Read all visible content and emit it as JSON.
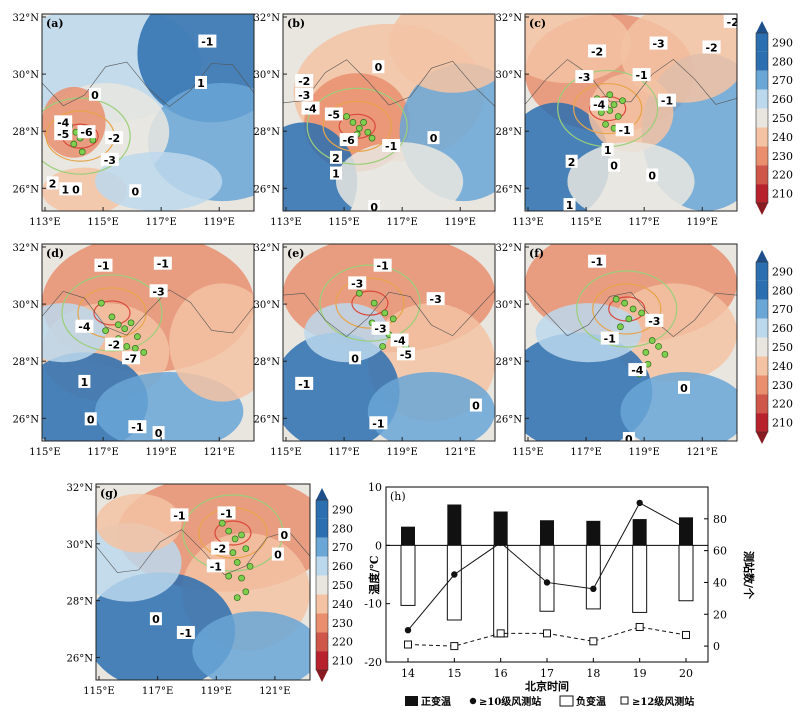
{
  "palette": {
    "cold_dark": "#2c6fb0",
    "cold": "#6aa6d6",
    "cold_light": "#bcd8ec",
    "neutral": "#e9e6e0",
    "warm_light": "#f3c3a3",
    "warm": "#e98f6e",
    "warm_dark": "#cf5749",
    "hot": "#b8222c",
    "contour_warm": "#d94a3c",
    "contour_mid": "#e8a44a",
    "contour_green": "#9bcf7a",
    "station_fill": "#7fcf4f"
  },
  "colorbar_ticks": [
    "290",
    "280",
    "270",
    "260",
    "250",
    "240",
    "230",
    "220",
    "210"
  ],
  "panels": [
    {
      "letter": "(a)",
      "lat_labels": [
        "32°N",
        "30°N",
        "28°N",
        "26°N"
      ],
      "lon_labels": [
        "113°E",
        "115°E",
        "117°E",
        "119°E"
      ],
      "contour_labels": [
        "-1",
        "1",
        "0",
        "-4",
        "-5",
        "-6",
        "-2",
        "-3",
        "2",
        "1",
        "0",
        "0"
      ]
    },
    {
      "letter": "(b)",
      "lat_labels": [
        "32°N",
        "30°N",
        "28°N",
        "26°N"
      ],
      "lon_labels": [
        "113°E",
        "115°E",
        "117°E",
        "119°E"
      ],
      "contour_labels": [
        "0",
        "-2",
        "-3",
        "-4",
        "-5",
        "-6",
        "2",
        "1",
        "-1",
        "0",
        "0"
      ]
    },
    {
      "letter": "(c)",
      "lat_labels": [
        "32°N",
        "30°N",
        "28°N",
        "26°N"
      ],
      "lon_labels": [
        "113°E",
        "115°E",
        "117°E",
        "119°E"
      ],
      "contour_labels": [
        "-2",
        "-2",
        "-3",
        "-2",
        "-3",
        "-1",
        "-4",
        "-1",
        "-1",
        "2",
        "1",
        "0",
        "0",
        "1"
      ]
    },
    {
      "letter": "(d)",
      "lat_labels": [
        "32°N",
        "30°N",
        "28°N",
        "26°N"
      ],
      "lon_labels": [
        "115°E",
        "117°E",
        "119°E",
        "121°E"
      ],
      "contour_labels": [
        "-1",
        "-1",
        "-3",
        "-4",
        "-2",
        "-7",
        "1",
        "0",
        "-1",
        "0"
      ]
    },
    {
      "letter": "(e)",
      "lat_labels": [
        "32°N",
        "30°N",
        "28°N",
        "26°N"
      ],
      "lon_labels": [
        "115°E",
        "117°E",
        "119°E",
        "121°E"
      ],
      "contour_labels": [
        "-1",
        "-3",
        "-3",
        "-3",
        "-4",
        "-5",
        "0",
        "-1",
        "-1",
        "0"
      ]
    },
    {
      "letter": "(f)",
      "lat_labels": [
        "32°N",
        "30°N",
        "28°N",
        "26°N"
      ],
      "lon_labels": [
        "115°E",
        "117°E",
        "119°E",
        "121°E"
      ],
      "contour_labels": [
        "-1",
        "-3",
        "-1",
        "-4",
        "0",
        "0"
      ]
    },
    {
      "letter": "(g)",
      "lat_labels": [
        "32°N",
        "30°N",
        "28°N",
        "26°N"
      ],
      "lon_labels": [
        "115°E",
        "117°E",
        "119°E",
        "121°E"
      ],
      "contour_labels": [
        "-1",
        "-1",
        "-2",
        "0",
        "-1",
        "0",
        "-1",
        "0"
      ]
    }
  ],
  "chart_data": {
    "type": "bar+line",
    "panel": "(h)",
    "xlabel": "北京时间",
    "ylabel_left": "温度/℃",
    "ylabel_right": "测站数/个",
    "x_ticks": [
      "14",
      "15",
      "16",
      "17",
      "18",
      "19",
      "20"
    ],
    "y_left_ticks": [
      "10",
      "0",
      "-10",
      "-20"
    ],
    "y_right_ticks": [
      "80",
      "60",
      "40",
      "20",
      "0"
    ],
    "ylim_left": [
      -20,
      10
    ],
    "ylim_right": [
      -10,
      100
    ],
    "x": [
      14,
      15,
      16,
      17,
      18,
      19,
      20
    ],
    "series": [
      {
        "name": "正变温",
        "kind": "bar",
        "axis": "left",
        "values": [
          3.2,
          7.0,
          5.8,
          4.3,
          4.2,
          4.5,
          4.8
        ]
      },
      {
        "name": "负变温",
        "kind": "bar",
        "axis": "left",
        "values": [
          -10.3,
          -12.8,
          -15.7,
          -11.3,
          -10.9,
          -11.5,
          -9.5
        ]
      },
      {
        "name": "≥10级风测站",
        "kind": "line",
        "axis": "right",
        "values": [
          10,
          45,
          65,
          40,
          36,
          90,
          74
        ]
      },
      {
        "name": "≥12级风测站",
        "kind": "dashed",
        "axis": "right",
        "values": [
          1,
          0,
          8,
          8,
          3,
          12,
          7
        ]
      }
    ],
    "legend_order": [
      "正变温",
      "≥10级风测站",
      "负变温",
      "≥12级风测站"
    ]
  }
}
